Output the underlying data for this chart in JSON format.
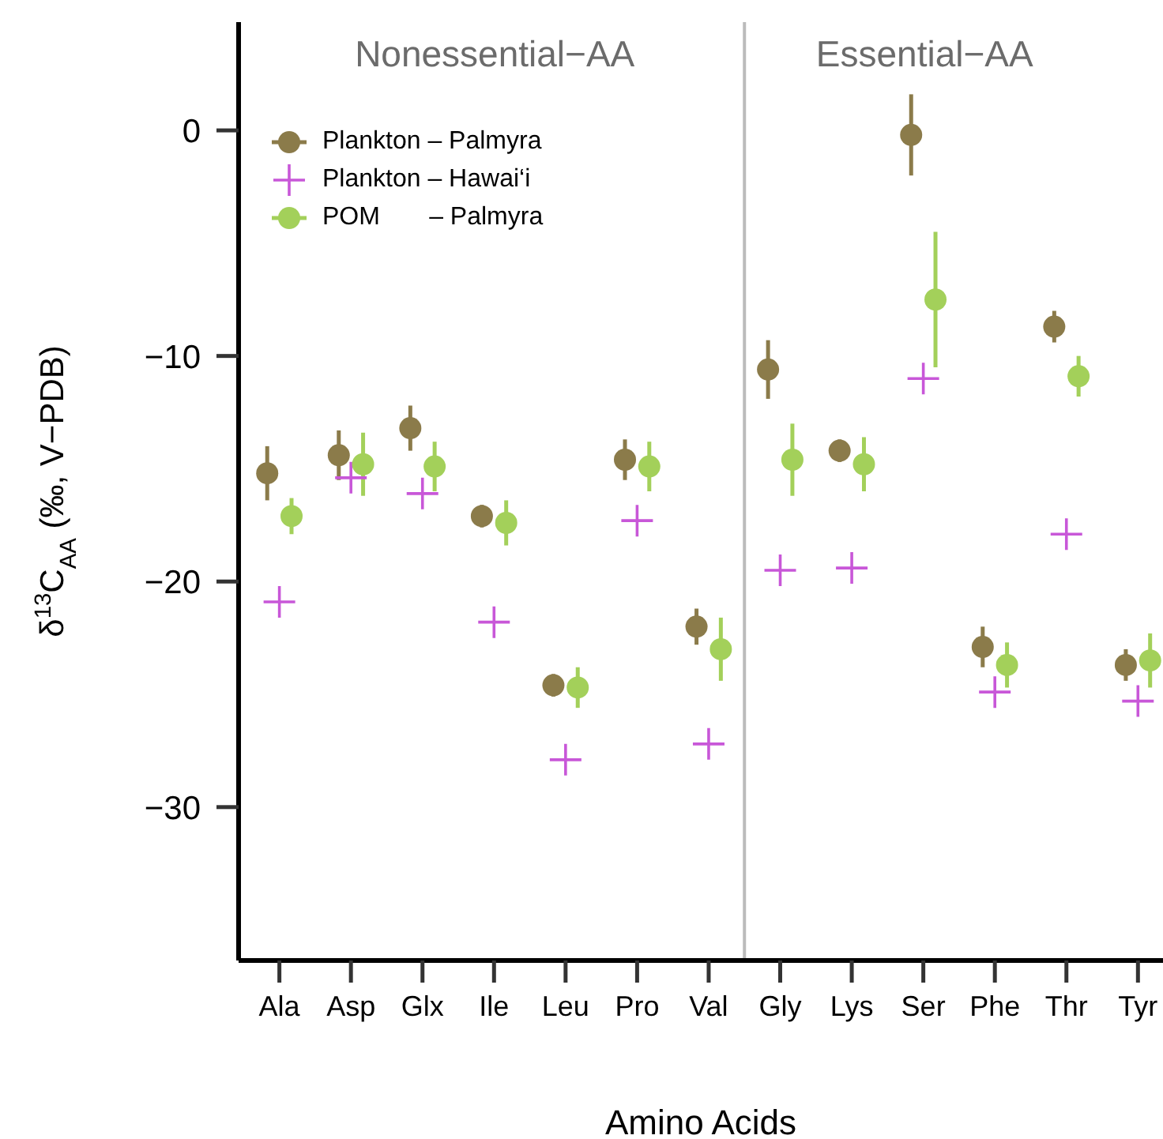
{
  "chart_data": {
    "type": "scatter",
    "xlabel": "Amino Acids",
    "ylabel": "δ$^{13}$C$_{AA}$ (‰, V−PDB)",
    "categories": [
      "Ala",
      "Asp",
      "Glx",
      "Ile",
      "Leu",
      "Pro",
      "Val",
      "Gly",
      "Lys",
      "Ser",
      "Phe",
      "Thr",
      "Tyr"
    ],
    "series": [
      {
        "name": "Plankton – Palmyra",
        "color": "#8b7b4a",
        "marker": "circle",
        "values": [
          -15.2,
          -14.4,
          -13.2,
          -17.1,
          -24.6,
          -14.6,
          -22.0,
          -10.6,
          -14.2,
          -0.2,
          -22.9,
          -8.7,
          -23.7
        ],
        "errors": [
          1.2,
          1.1,
          1.0,
          0.5,
          0.5,
          0.9,
          0.8,
          1.3,
          0.5,
          1.8,
          0.9,
          0.7,
          0.7
        ]
      },
      {
        "name": "Plankton – Hawai‘i",
        "color": "#c857d8",
        "marker": "cross",
        "values": [
          -20.9,
          -15.4,
          -16.1,
          -21.8,
          -27.9,
          -17.3,
          -27.2,
          -19.5,
          -19.4,
          -11.0,
          -24.9,
          -17.9,
          -25.3
        ]
      },
      {
        "name": "POM       – Palmyra",
        "color": "#a3d05a",
        "marker": "circle",
        "values": [
          -17.1,
          -14.8,
          -14.9,
          -17.4,
          -24.7,
          -14.9,
          -23.0,
          -14.6,
          -14.8,
          -7.5,
          -23.7,
          -10.9,
          -23.5
        ],
        "errors": [
          0.8,
          1.4,
          1.1,
          1.0,
          0.9,
          1.1,
          1.4,
          1.6,
          1.2,
          3.0,
          1.0,
          0.9,
          1.2
        ]
      }
    ],
    "ylim": [
      -36.8,
      4.8
    ],
    "yticks": [
      {
        "value": -30,
        "label": "−30"
      },
      {
        "value": -20,
        "label": "−20"
      },
      {
        "value": -10,
        "label": "−10"
      },
      0
    ],
    "annotations": [
      "Nonessential−AA",
      "Essential−AA"
    ],
    "grid": false,
    "legend": "top left"
  }
}
